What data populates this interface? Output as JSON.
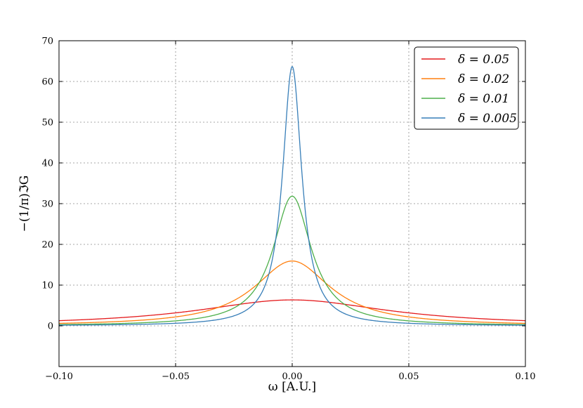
{
  "chart_data": {
    "type": "line",
    "xlabel": "ω [A.U.]",
    "ylabel": "−(1/π)ℑG",
    "xlim": [
      -0.1,
      0.1
    ],
    "ylim": [
      -10,
      70
    ],
    "xticks": [
      -0.1,
      -0.05,
      0.0,
      0.05,
      0.1
    ],
    "xtick_labels": [
      "−0.10",
      "−0.05",
      "0.00",
      "0.05",
      "0.10"
    ],
    "yticks": [
      0,
      10,
      20,
      30,
      40,
      50,
      60,
      70
    ],
    "ytick_labels": [
      "0",
      "10",
      "20",
      "30",
      "40",
      "50",
      "60",
      "70"
    ],
    "grid": true,
    "legend_position": "top-right",
    "series": [
      {
        "name": "δ = 0.05",
        "color": "#e41a1c",
        "delta": 0.05
      },
      {
        "name": "δ = 0.02",
        "color": "#ff7f0e",
        "delta": 0.02
      },
      {
        "name": "δ = 0.01",
        "color": "#4daf4a",
        "delta": 0.01
      },
      {
        "name": "δ = 0.005",
        "color": "#377eb8",
        "delta": 0.005
      }
    ]
  }
}
